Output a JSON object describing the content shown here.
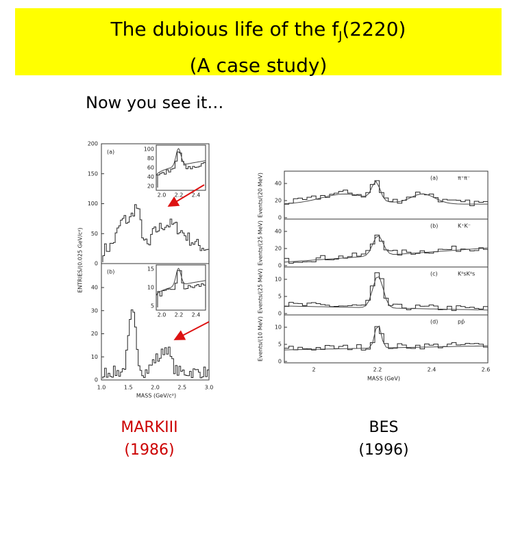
{
  "title": {
    "line1": "The dubious life of the f",
    "line1_sub": "J",
    "line1_end": "(2220)",
    "line2": "(A case study)"
  },
  "caption": "Now you see it…",
  "left_figure": {
    "y_label": "ENTRIES/(0.025 GeV/c²)",
    "x_label": "MASS (GeV/c²)",
    "top_panel": {
      "label": "(a)",
      "yticks": [
        "200",
        "150",
        "100",
        "50",
        "0"
      ],
      "inset_yticks": [
        "100",
        "80",
        "60",
        "40",
        "20"
      ],
      "inset_xticks": [
        "2.0",
        "2.2",
        "2.4"
      ]
    },
    "bottom_panel": {
      "label": "(b)",
      "yticks": [
        "40",
        "30",
        "20",
        "10",
        "0"
      ],
      "inset_yticks": [
        "15",
        "10",
        "5"
      ],
      "inset_xticks": [
        "2.0",
        "2.2",
        "2.4"
      ]
    },
    "xticks": [
      "1.0",
      "1.5",
      "2.0",
      "2.5",
      "3.0"
    ]
  },
  "right_figure": {
    "x_label": "MASS (GeV)",
    "xticks": [
      "2",
      "2.2",
      "2.4",
      "2.6"
    ],
    "panels": [
      {
        "label": "(a)",
        "channel": "π⁺π⁻",
        "y_label": "Events/(20 MeV)",
        "yticks": [
          "40",
          "20",
          "0"
        ]
      },
      {
        "label": "(b)",
        "channel": "K⁺K⁻",
        "y_label": "Events/(25 MeV)",
        "yticks": [
          "40",
          "20",
          "0"
        ]
      },
      {
        "label": "(c)",
        "channel": "K⁰sK⁰s",
        "y_label": "Events/(25 MeV)",
        "yticks": [
          "10",
          "5",
          "0"
        ]
      },
      {
        "label": "(d)",
        "channel": "pp̄",
        "y_label": "Events/(10 MeV)",
        "yticks": [
          "10",
          "5",
          "0"
        ]
      }
    ]
  },
  "labels": {
    "left": [
      "MARKIII",
      "(1986)"
    ],
    "right": [
      "BES",
      "(1996)"
    ]
  }
}
